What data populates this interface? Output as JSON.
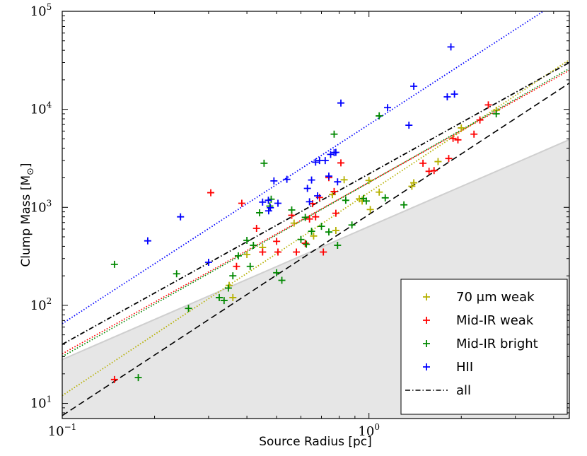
{
  "chart_data": {
    "type": "scatter",
    "title": "",
    "xlabel": "Source Radius [pc]",
    "ylabel_main": "Clump Mass [M",
    "ylabel_sub": "⊙",
    "ylabel_close": "]",
    "xscale": "log",
    "yscale": "log",
    "xlim": [
      0.1,
      4.5
    ],
    "ylim": [
      7,
      100000
    ],
    "x_ticks": [
      {
        "value": 0.1,
        "base": "10",
        "exp": "−1"
      },
      {
        "value": 1,
        "base": "10",
        "exp": "0"
      }
    ],
    "y_ticks": [
      {
        "value": 10,
        "base": "10",
        "exp": "1"
      },
      {
        "value": 100,
        "base": "10",
        "exp": "2"
      },
      {
        "value": 1000,
        "base": "10",
        "exp": "3"
      },
      {
        "value": 10000,
        "base": "10",
        "exp": "4"
      },
      {
        "value": 100000,
        "base": "10",
        "exp": "5"
      }
    ],
    "shaded_region": {
      "color": "#e6e6e6",
      "edge_color": "#cfcfcf",
      "x": [
        0.1,
        4.5
      ],
      "upper_y": [
        28,
        4900
      ]
    },
    "series": [
      {
        "name": "70 μm weak",
        "color": "#b5b000",
        "points": [
          [
            0.35,
            160
          ],
          [
            0.36,
            120
          ],
          [
            0.4,
            330
          ],
          [
            0.45,
            390
          ],
          [
            0.57,
            690
          ],
          [
            0.66,
            510
          ],
          [
            0.76,
            1350
          ],
          [
            0.78,
            580
          ],
          [
            0.83,
            1910
          ],
          [
            0.93,
            1220
          ],
          [
            0.95,
            1160
          ],
          [
            1.0,
            1880
          ],
          [
            1.01,
            950
          ],
          [
            1.08,
            1430
          ],
          [
            1.38,
            1640
          ],
          [
            1.4,
            1780
          ],
          [
            1.68,
            2930
          ],
          [
            2.0,
            6460
          ],
          [
            2.6,
            9780
          ]
        ],
        "fit": {
          "x": [
            0.1,
            4.5
          ],
          "y": [
            12,
            32000
          ]
        }
      },
      {
        "name": "Mid-IR weak",
        "color": "#ff0000",
        "points": [
          [
            0.148,
            17.5
          ],
          [
            0.305,
            1410
          ],
          [
            0.37,
            250
          ],
          [
            0.385,
            1100
          ],
          [
            0.43,
            610
          ],
          [
            0.45,
            350
          ],
          [
            0.5,
            450
          ],
          [
            0.505,
            350
          ],
          [
            0.56,
            830
          ],
          [
            0.58,
            350
          ],
          [
            0.62,
            430
          ],
          [
            0.64,
            760
          ],
          [
            0.655,
            1090
          ],
          [
            0.67,
            800
          ],
          [
            0.69,
            1260
          ],
          [
            0.71,
            350
          ],
          [
            0.74,
            2010
          ],
          [
            0.77,
            1450
          ],
          [
            0.78,
            870
          ],
          [
            0.81,
            2840
          ],
          [
            1.5,
            2820
          ],
          [
            1.57,
            2330
          ],
          [
            1.63,
            2370
          ],
          [
            1.82,
            3150
          ],
          [
            1.88,
            5050
          ],
          [
            1.95,
            4880
          ],
          [
            2.2,
            5580
          ],
          [
            2.3,
            7780
          ],
          [
            2.45,
            11100
          ]
        ],
        "fit": {
          "x": [
            0.1,
            4.5
          ],
          "y": [
            32,
            25000
          ]
        }
      },
      {
        "name": "Mid-IR bright",
        "color": "#008800",
        "points": [
          [
            0.148,
            262
          ],
          [
            0.177,
            18.3
          ],
          [
            0.236,
            210
          ],
          [
            0.258,
            93
          ],
          [
            0.325,
            120
          ],
          [
            0.337,
            112
          ],
          [
            0.348,
            150
          ],
          [
            0.36,
            200
          ],
          [
            0.375,
            320
          ],
          [
            0.4,
            460
          ],
          [
            0.41,
            250
          ],
          [
            0.42,
            410
          ],
          [
            0.44,
            880
          ],
          [
            0.455,
            2820
          ],
          [
            0.475,
            1030
          ],
          [
            0.48,
            1210
          ],
          [
            0.5,
            215
          ],
          [
            0.52,
            180
          ],
          [
            0.56,
            940
          ],
          [
            0.6,
            470
          ],
          [
            0.62,
            790
          ],
          [
            0.625,
            420
          ],
          [
            0.65,
            570
          ],
          [
            0.7,
            640
          ],
          [
            0.74,
            560
          ],
          [
            0.77,
            5580
          ],
          [
            0.79,
            410
          ],
          [
            0.84,
            1180
          ],
          [
            0.88,
            660
          ],
          [
            0.96,
            1230
          ],
          [
            0.98,
            1160
          ],
          [
            1.08,
            8570
          ],
          [
            1.13,
            1250
          ],
          [
            1.3,
            1060
          ],
          [
            2.6,
            9000
          ]
        ],
        "fit": {
          "x": [
            0.1,
            4.5
          ],
          "y": [
            30,
            26000
          ]
        }
      },
      {
        "name": "HII",
        "color": "#0000ff",
        "points": [
          [
            0.19,
            455
          ],
          [
            0.243,
            800
          ],
          [
            0.3,
            275
          ],
          [
            0.45,
            1130
          ],
          [
            0.47,
            1180
          ],
          [
            0.471,
            920
          ],
          [
            0.477,
            990
          ],
          [
            0.49,
            1860
          ],
          [
            0.505,
            1100
          ],
          [
            0.54,
            1930
          ],
          [
            0.63,
            1560
          ],
          [
            0.64,
            1140
          ],
          [
            0.65,
            1900
          ],
          [
            0.67,
            2890
          ],
          [
            0.68,
            1310
          ],
          [
            0.69,
            3000
          ],
          [
            0.72,
            3000
          ],
          [
            0.74,
            2080
          ],
          [
            0.75,
            3470
          ],
          [
            0.77,
            3610
          ],
          [
            0.78,
            3640
          ],
          [
            0.79,
            1820
          ],
          [
            0.81,
            11600
          ],
          [
            1.15,
            10400
          ],
          [
            1.35,
            6880
          ],
          [
            1.4,
            17200
          ],
          [
            1.8,
            13400
          ],
          [
            1.85,
            43300
          ],
          [
            1.9,
            14300
          ]
        ],
        "fit": {
          "x": [
            0.1,
            3.7
          ],
          "y": [
            65,
            100000
          ]
        }
      },
      {
        "name": "all",
        "color": "#000000",
        "fit": {
          "x": [
            0.1,
            4.5
          ],
          "y": [
            40,
            30000
          ]
        }
      }
    ],
    "extra_lines": [
      {
        "name": "lower-envelope",
        "color": "#000000",
        "x": [
          0.1,
          4.5
        ],
        "y": [
          7.5,
          18500
        ]
      }
    ],
    "legend": {
      "position": "bottom-right",
      "entries": [
        {
          "label": "70 μm weak",
          "color": "#b5b000",
          "marker": "plus"
        },
        {
          "label": "Mid-IR weak",
          "color": "#ff0000",
          "marker": "plus"
        },
        {
          "label": "Mid-IR bright",
          "color": "#008800",
          "marker": "plus"
        },
        {
          "label": "HII",
          "color": "#0000ff",
          "marker": "plus"
        },
        {
          "label": "all",
          "color": "#000000",
          "marker": "dashdot"
        }
      ]
    }
  }
}
